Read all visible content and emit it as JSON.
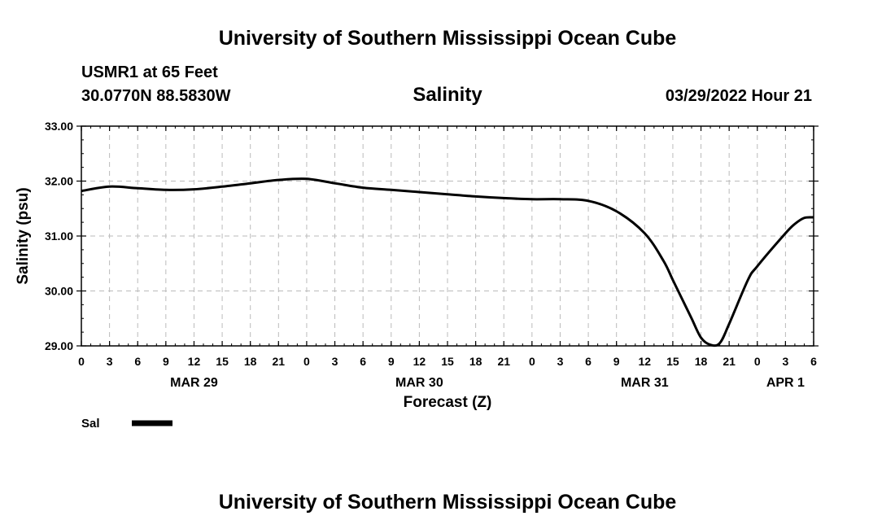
{
  "header": {
    "title": "University of Southern Mississippi Ocean Cube",
    "station": "USMR1 at 65 Feet",
    "location": "30.0770N  88.5830W",
    "datetime": "03/29/2022 Hour 21",
    "footer_title": "University of Southern Mississippi Ocean Cube"
  },
  "chart_data": {
    "type": "line",
    "title": "Salinity",
    "xlabel": "Forecast (Z)",
    "ylabel": "Salinity (psu)",
    "xlim": [
      0,
      78
    ],
    "ylim": [
      29,
      33
    ],
    "yticks": [
      29,
      30,
      31,
      32,
      33
    ],
    "ytick_labels": [
      "29.00",
      "30.00",
      "31.00",
      "32.00",
      "33.00"
    ],
    "xtick_labels": [
      "0",
      "3",
      "6",
      "9",
      "12",
      "15",
      "18",
      "21",
      "0",
      "3",
      "6",
      "9",
      "12",
      "15",
      "18",
      "21",
      "0",
      "3",
      "6",
      "9",
      "12",
      "15",
      "18",
      "21",
      "0",
      "3",
      "6"
    ],
    "day_labels": [
      {
        "label": "MAR 29",
        "x": 12
      },
      {
        "label": "MAR 30",
        "x": 36
      },
      {
        "label": "MAR 31",
        "x": 60
      },
      {
        "label": "APR 1",
        "x": 75
      }
    ],
    "grid": true,
    "series": [
      {
        "name": "Sal",
        "color": "#000000",
        "x": [
          0,
          3,
          6,
          9,
          12,
          15,
          18,
          21,
          24,
          27,
          30,
          33,
          36,
          39,
          42,
          45,
          48,
          51,
          54,
          57,
          60,
          62,
          63,
          64,
          65,
          66,
          67,
          68,
          69,
          71,
          72,
          75,
          76,
          77,
          78
        ],
        "values": [
          31.82,
          31.9,
          31.87,
          31.84,
          31.85,
          31.9,
          31.96,
          32.02,
          32.04,
          31.96,
          31.88,
          31.84,
          31.8,
          31.76,
          31.72,
          31.69,
          31.67,
          31.67,
          31.64,
          31.45,
          31.05,
          30.55,
          30.2,
          29.85,
          29.5,
          29.15,
          29.02,
          29.05,
          29.4,
          30.2,
          30.45,
          31.05,
          31.22,
          31.33,
          31.34
        ]
      }
    ],
    "legend": [
      {
        "label": "Sal",
        "position": "bottom-left"
      }
    ]
  },
  "colors": {
    "line": "#000000",
    "grid": "#bbbbbb",
    "frame": "#000000",
    "background": "#ffffff"
  }
}
